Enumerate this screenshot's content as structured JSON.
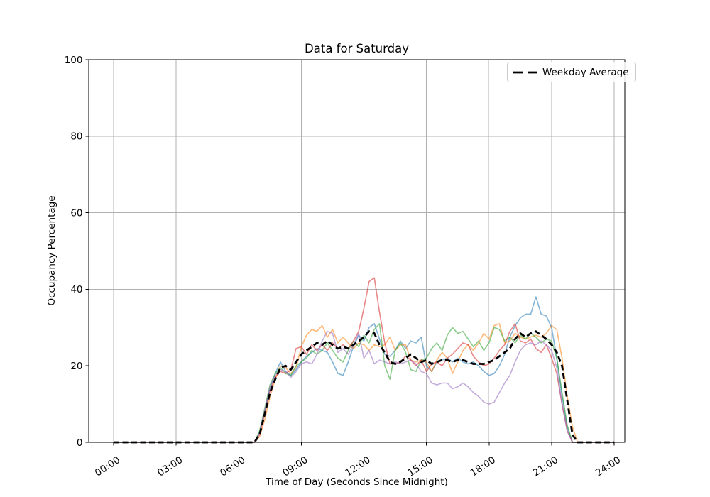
{
  "title": "Data for Saturday",
  "legend": {
    "label": "Weekday Average"
  },
  "axes": {
    "xlabel": "Time of Day (Seconds Since Midnight)",
    "ylabel": "Occupancy Percentage"
  },
  "chart_data": {
    "type": "line",
    "title": "Data for Saturday",
    "xlabel": "Time of Day (Seconds Since Midnight)",
    "ylabel": "Occupancy Percentage",
    "ylim": [
      0,
      100
    ],
    "grid": true,
    "grid_color": "#b0b0b0",
    "axis_color": "#000000",
    "legend_position": "upper right",
    "yticks": [
      0,
      20,
      40,
      60,
      80,
      100
    ],
    "xticks": {
      "hours": [
        0,
        3,
        6,
        9,
        12,
        15,
        18,
        21,
        24
      ],
      "labels": [
        "00:00",
        "03:00",
        "06:00",
        "09:00",
        "12:00",
        "15:00",
        "18:00",
        "21:00",
        "24:00"
      ]
    },
    "x_start_hours": 0,
    "x_step_hours": 0.25,
    "series_alpha": 0.55,
    "series": [
      {
        "id": "blue",
        "color": "#1f77b4",
        "values": [
          0,
          0,
          0,
          0,
          0,
          0,
          0,
          0,
          0,
          0,
          0,
          0,
          0,
          0,
          0,
          0,
          0,
          0,
          0,
          0,
          0,
          0,
          0,
          0,
          0,
          0,
          0,
          0,
          2.5,
          8,
          14,
          18,
          21,
          18.5,
          17.5,
          19,
          21,
          22.5,
          23.5,
          24.5,
          24,
          23.5,
          21,
          18,
          17.5,
          21,
          25,
          28,
          26.5,
          30,
          31,
          27,
          23,
          22.5,
          24,
          26.5,
          24.5,
          26.5,
          26,
          27.5,
          20,
          18.5,
          21,
          21.5,
          22,
          21,
          22,
          21,
          20.5,
          21,
          20,
          18.5,
          17.5,
          18,
          20,
          23,
          27.5,
          30.5,
          32.5,
          33.5,
          33.5,
          38,
          33.5,
          33,
          30,
          22,
          12,
          4,
          0,
          0,
          0,
          0,
          0,
          0,
          0,
          0,
          0
        ]
      },
      {
        "id": "orange",
        "color": "#ff7f0e",
        "values": [
          0,
          0,
          0,
          0,
          0,
          0,
          0,
          0,
          0,
          0,
          0,
          0,
          0,
          0,
          0,
          0,
          0,
          0,
          0,
          0,
          0,
          0,
          0,
          0,
          0,
          0,
          0,
          0,
          1.5,
          6,
          12,
          16.5,
          20,
          19.5,
          18,
          19.5,
          25,
          28,
          29.5,
          29,
          30.5,
          27.5,
          29.5,
          26,
          27.5,
          26,
          24.5,
          26,
          25.5,
          24,
          25.5,
          25,
          25.5,
          27.5,
          24,
          25.5,
          25.5,
          21.5,
          21,
          21.5,
          21,
          18.5,
          21.5,
          23.5,
          22,
          18,
          21,
          24,
          25.5,
          24,
          26,
          28.5,
          27,
          30.5,
          31,
          26,
          26.5,
          28.5,
          27.5,
          27,
          27.5,
          28,
          27.5,
          28.5,
          30.5,
          29.5,
          22,
          12,
          4,
          0,
          0,
          0,
          0,
          0,
          0,
          0,
          0
        ]
      },
      {
        "id": "green",
        "color": "#2ca02c",
        "values": [
          0,
          0,
          0,
          0,
          0,
          0,
          0,
          0,
          0,
          0,
          0,
          0,
          0,
          0,
          0,
          0,
          0,
          0,
          0,
          0,
          0,
          0,
          0,
          0,
          0,
          0,
          0,
          0,
          3,
          9,
          15,
          18,
          19.5,
          18,
          17.5,
          20,
          21,
          22,
          24,
          23,
          24,
          26,
          24,
          22,
          21,
          24,
          26.5,
          25,
          28,
          26,
          29.5,
          31,
          20,
          16.5,
          24,
          26,
          23.5,
          19,
          18.5,
          21.5,
          22,
          24.5,
          26,
          24,
          28,
          30,
          28.5,
          29,
          27,
          25,
          26.5,
          24,
          26,
          30,
          29.5,
          26.5,
          27.5,
          26,
          28,
          27,
          28.5,
          27.5,
          26,
          27,
          26.5,
          22,
          13,
          4.5,
          0,
          0,
          0,
          0,
          0,
          0,
          0,
          0,
          0
        ]
      },
      {
        "id": "red",
        "color": "#d62728",
        "values": [
          0,
          0,
          0,
          0,
          0,
          0,
          0,
          0,
          0,
          0,
          0,
          0,
          0,
          0,
          0,
          0,
          0,
          0,
          0,
          0,
          0,
          0,
          0,
          0,
          0,
          0,
          0,
          0,
          2,
          7.5,
          13.5,
          17,
          18.5,
          18,
          19,
          24.5,
          25,
          23,
          25.5,
          24,
          25.5,
          24,
          26,
          24.5,
          25.5,
          24.5,
          26.5,
          29,
          35,
          42,
          43,
          34,
          26,
          20.5,
          20.5,
          21,
          22.5,
          21.5,
          20,
          21.5,
          18.5,
          20.5,
          21,
          20,
          22,
          23,
          24.5,
          26,
          25.5,
          22.5,
          21,
          20,
          20.5,
          22,
          24,
          25.5,
          29,
          31,
          26.5,
          26,
          27,
          24.5,
          23.5,
          25.5,
          22,
          18,
          10,
          3,
          0,
          0,
          0,
          0,
          0,
          0,
          0,
          0,
          0
        ]
      },
      {
        "id": "purple",
        "color": "#9467bd",
        "values": [
          0,
          0,
          0,
          0,
          0,
          0,
          0,
          0,
          0,
          0,
          0,
          0,
          0,
          0,
          0,
          0,
          0,
          0,
          0,
          0,
          0,
          0,
          0,
          0,
          0,
          0,
          0,
          0,
          2.5,
          8.5,
          14.5,
          17.5,
          19,
          18.5,
          17,
          18.5,
          20.5,
          21,
          20.5,
          23,
          26.5,
          29,
          28.5,
          23.5,
          24.5,
          23,
          25.5,
          28.5,
          22,
          24,
          20.5,
          21.5,
          21,
          20.5,
          21,
          20.5,
          21,
          21.5,
          20.5,
          18.5,
          18,
          15.5,
          15,
          15.5,
          15.5,
          14,
          14.5,
          15.5,
          14.5,
          13,
          12,
          10.5,
          10,
          10.5,
          13,
          15.5,
          17.5,
          21,
          24,
          25.5,
          26,
          25.5,
          26.5,
          25.5,
          24,
          19.5,
          10,
          3,
          0,
          0,
          0,
          0,
          0,
          0,
          0,
          0,
          0
        ]
      }
    ],
    "average_series": {
      "name": "Weekday Average",
      "color": "#000000",
      "dashed": true,
      "values": [
        0,
        0,
        0,
        0,
        0,
        0,
        0,
        0,
        0,
        0,
        0,
        0,
        0,
        0,
        0,
        0,
        0,
        0,
        0,
        0,
        0,
        0,
        0,
        0,
        0,
        0,
        0,
        0,
        2,
        7.5,
        13,
        16.5,
        19.5,
        20,
        19,
        21,
        23,
        24,
        25,
        26,
        25.5,
        26.5,
        25.5,
        24.5,
        25,
        24.5,
        25.5,
        26.5,
        27.5,
        29,
        28.5,
        25.5,
        23.5,
        21,
        20.5,
        21,
        22,
        23,
        22,
        21,
        21.5,
        20.5,
        21,
        21.5,
        21.5,
        21,
        21.5,
        21.5,
        21,
        20.5,
        20.5,
        20.5,
        21,
        21.5,
        22.5,
        23.5,
        24.5,
        27,
        28.5,
        27.5,
        28.5,
        29,
        28,
        27,
        25.5,
        23.5,
        20,
        11,
        2,
        0,
        0,
        0,
        0,
        0,
        0,
        0,
        0
      ]
    }
  }
}
